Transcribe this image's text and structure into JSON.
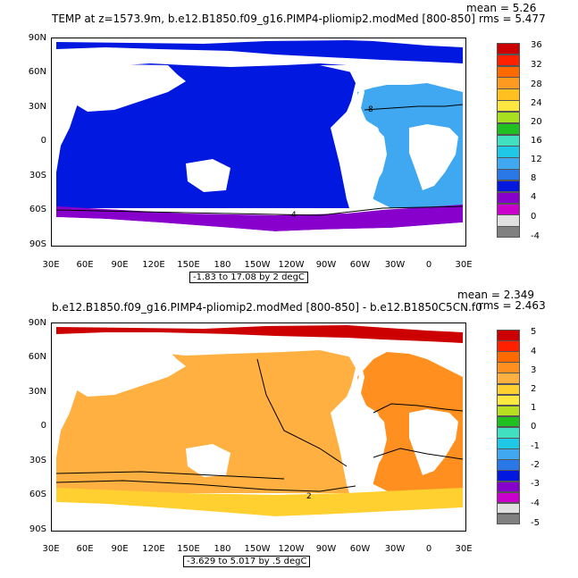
{
  "top": {
    "title": "TEMP at z=1573.9m, b.e12.B1850.f09_g16.PIMP4-pliomip2.modMed [800-850]",
    "mean": "mean = 5.26",
    "rms": "rms = 5.477",
    "range": "-1.83 to 17.08 by 2 degC",
    "y_ticks": [
      "90N",
      "60N",
      "30N",
      "0",
      "30S",
      "60S",
      "90S"
    ],
    "x_ticks": [
      "30E",
      "60E",
      "90E",
      "120E",
      "150E",
      "180",
      "150W",
      "120W",
      "90W",
      "60W",
      "30W",
      "0",
      "30E"
    ],
    "colorbar_labels": [
      "36",
      "32",
      "28",
      "24",
      "20",
      "16",
      "12",
      "8",
      "4",
      "0",
      "-4"
    ],
    "colorbar_colors": [
      "#cc0000",
      "#ff2000",
      "#ff6a00",
      "#ff9a20",
      "#ffc020",
      "#ffe640",
      "#a8e020",
      "#20c020",
      "#40e0c0",
      "#20c8e8",
      "#40a8f0",
      "#2a78e8",
      "#0018e0",
      "#8800cc",
      "#cc00cc",
      "#e0e0e0",
      "#808080"
    ],
    "contour_labels": [
      "8",
      "4"
    ]
  },
  "bottom": {
    "title": "b.e12.B1850.f09_g16.PIMP4-pliomip2.modMed [800-850] - b.e12.B1850C5CN.f0",
    "mean": "mean = 2.349",
    "rms": "rms = 2.463",
    "range": "-3.629 to 5.017 by .5 degC",
    "y_ticks": [
      "90N",
      "60N",
      "30N",
      "0",
      "30S",
      "60S",
      "90S"
    ],
    "x_ticks": [
      "30E",
      "60E",
      "90E",
      "120E",
      "150E",
      "180",
      "150W",
      "120W",
      "90W",
      "60W",
      "30W",
      "0",
      "30E"
    ],
    "colorbar_labels": [
      "5",
      "4",
      "3",
      "2",
      "1",
      "0",
      "-1",
      "-2",
      "-3",
      "-4",
      "-5"
    ],
    "colorbar_colors": [
      "#cc0000",
      "#ff2000",
      "#ff6a00",
      "#ff9020",
      "#ffb040",
      "#ffd030",
      "#ffe840",
      "#b8e020",
      "#20c020",
      "#40e0c0",
      "#20c8e8",
      "#40a8f0",
      "#2a78e8",
      "#0018e0",
      "#8800cc",
      "#cc00cc",
      "#e0e0e0",
      "#808080"
    ],
    "contour_labels": [
      "2"
    ]
  }
}
